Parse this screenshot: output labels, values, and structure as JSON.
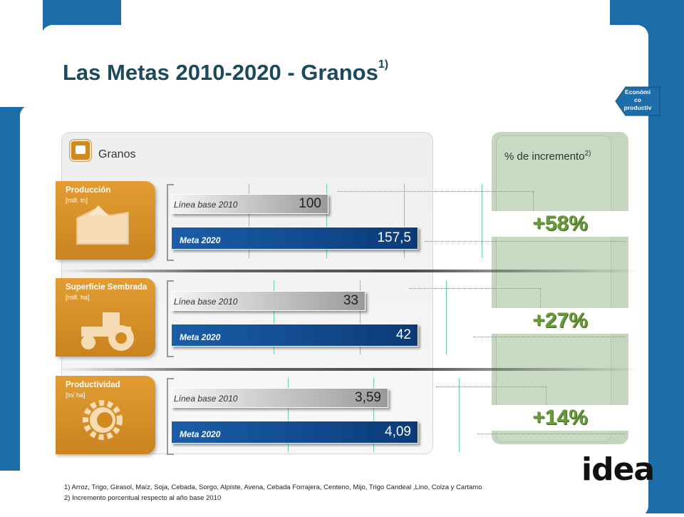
{
  "title": "Las Metas 2010-2020 - Granos",
  "title_sup": "1)",
  "badge_lines": [
    "Económi",
    "co",
    "productiv"
  ],
  "panel_label": "Granos",
  "pct_header": "% de incremento",
  "pct_header_sup": "2)",
  "logo": "idea",
  "colors": {
    "blue": "#1d6da8",
    "orange": "#d08a1f",
    "green_text": "#6a9a3a",
    "meta_bar": "#1a5ea8",
    "base_bar": "#a0a0a0"
  },
  "categories": [
    {
      "title": "Producción",
      "unit": "[mill. tn]",
      "icon": "grain-pile-icon"
    },
    {
      "title": "Superficie Sembrada",
      "unit": "[mill. ha]",
      "icon": "tractor-icon"
    },
    {
      "title": "Productividad",
      "unit": "[tn/ ha]",
      "icon": "gear-icon"
    }
  ],
  "bar_labels": {
    "base": "Línea base 2010",
    "meta": "Meta 2020"
  },
  "chart_data": {
    "type": "bar",
    "orientation": "horizontal",
    "groups": [
      {
        "name": "Producción",
        "unit": "[mill. tn]",
        "values": {
          "base": 100,
          "meta": 157.5
        },
        "labels": {
          "base": "100",
          "meta": "157,5"
        },
        "increase": "+58%"
      },
      {
        "name": "Superficie Sembrada",
        "unit": "[mill. ha]",
        "values": {
          "base": 33,
          "meta": 42
        },
        "labels": {
          "base": "33",
          "meta": "42"
        },
        "increase": "+27%"
      },
      {
        "name": "Productividad",
        "unit": "[tn/ ha]",
        "values": {
          "base": 3.59,
          "meta": 4.09
        },
        "labels": {
          "base": "3,59",
          "meta": "4,09"
        },
        "increase": "+14%"
      }
    ],
    "series": [
      {
        "name": "Línea base 2010",
        "color": "#a0a0a0"
      },
      {
        "name": "Meta 2020",
        "color": "#1a5ea8"
      }
    ]
  },
  "footnotes": [
    "1) Arroz, Trigo, Girasol, Maíz, Soja, Cebada, Sorgo, Alpiste, Avena, Cebada Forrajera, Centeno, Mijo, Trigo Candeal ,Lino, Colza y Cartamo",
    "2) Incremento porcentual respecto al año base 2010"
  ]
}
